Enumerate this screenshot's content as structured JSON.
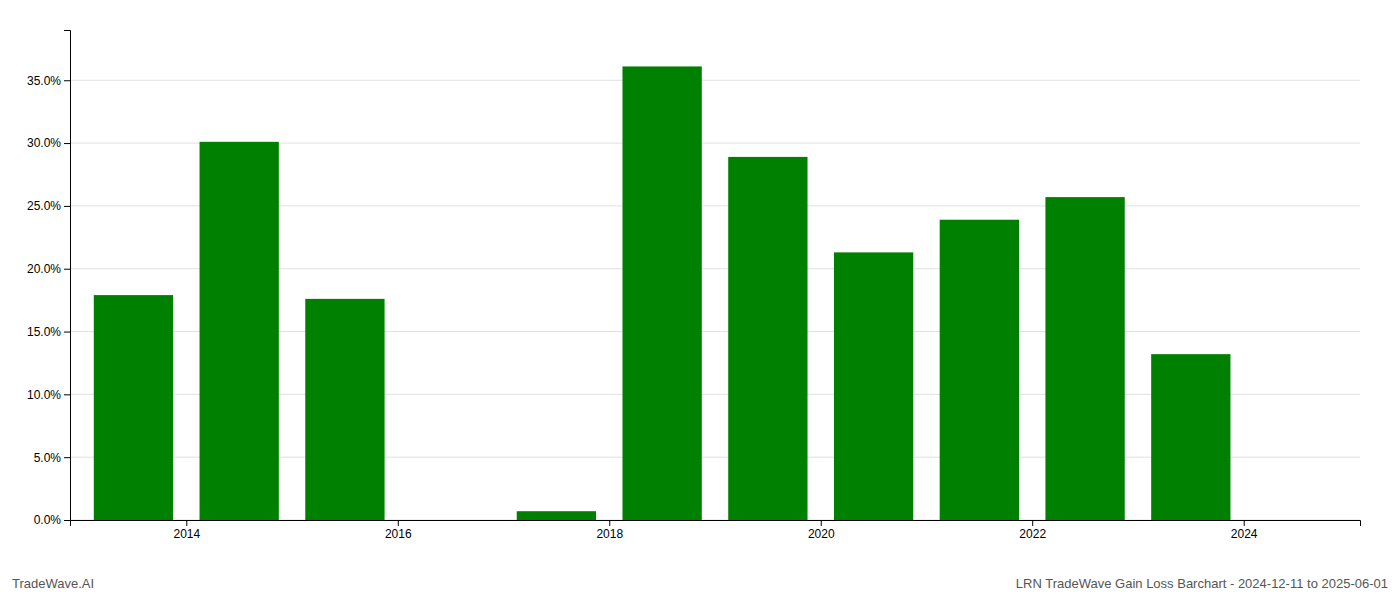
{
  "chart_data": {
    "type": "bar",
    "x": [
      2013,
      2014,
      2015,
      2016,
      2017,
      2018,
      2019,
      2020,
      2021,
      2022,
      2023
    ],
    "values": [
      0.179,
      0.301,
      0.176,
      0.0,
      0.007,
      0.361,
      0.289,
      0.213,
      0.239,
      0.257,
      0.132
    ],
    "color": "#008000",
    "xlim": [
      2012.4,
      2024.6
    ],
    "xticks": [
      {
        "value": 2013.5,
        "label": "2014"
      },
      {
        "value": 2015.5,
        "label": "2016"
      },
      {
        "value": 2017.5,
        "label": "2018"
      },
      {
        "value": 2019.5,
        "label": "2020"
      },
      {
        "value": 2021.5,
        "label": "2022"
      },
      {
        "value": 2023.5,
        "label": "2024"
      }
    ],
    "ylim": [
      0,
      0.39
    ],
    "yticks": [
      {
        "value": 0.0,
        "label": "0.0%"
      },
      {
        "value": 0.05,
        "label": "5.0%"
      },
      {
        "value": 0.1,
        "label": "10.0%"
      },
      {
        "value": 0.15,
        "label": "15.0%"
      },
      {
        "value": 0.2,
        "label": "20.0%"
      },
      {
        "value": 0.25,
        "label": "25.0%"
      },
      {
        "value": 0.3,
        "label": "30.0%"
      },
      {
        "value": 0.35,
        "label": "35.0%"
      }
    ],
    "grid": true,
    "annotations": [
      "TradeWave.AI",
      "LRN TradeWave Gain Loss Barchart - 2024-12-11 to 2025-06-01"
    ]
  }
}
